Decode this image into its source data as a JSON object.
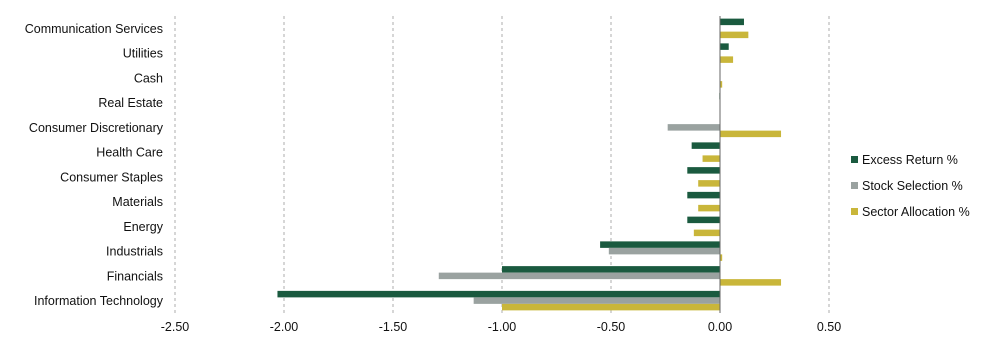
{
  "chart_data": {
    "type": "bar",
    "orientation": "horizontal",
    "categories": [
      "Communication Services",
      "Utilities",
      "Cash",
      "Real Estate",
      "Consumer Discretionary",
      "Health Care",
      "Consumer Staples",
      "Materials",
      "Energy",
      "Industrials",
      "Financials",
      "Information Technology"
    ],
    "series": [
      {
        "name": "Excess Return %",
        "color": "#1a5a3f",
        "values": [
          0.11,
          0.04,
          0.0,
          -0.003,
          0.0,
          -0.13,
          -0.15,
          -0.15,
          -0.15,
          -0.55,
          -1.0,
          -2.03
        ]
      },
      {
        "name": "Stock Selection %",
        "color": "#9aa2a0",
        "values": [
          0.0,
          0.0,
          0.0,
          0.0,
          -0.24,
          0.0,
          0.0,
          0.0,
          0.0,
          -0.51,
          -1.29,
          -1.13
        ]
      },
      {
        "name": "Sector Allocation %",
        "color": "#c9b63a",
        "values": [
          0.13,
          0.06,
          0.01,
          0.0,
          0.28,
          -0.08,
          -0.1,
          -0.1,
          -0.12,
          0.01,
          0.28,
          -1.0
        ]
      }
    ],
    "xlim": [
      -2.5,
      0.5
    ],
    "xticks": [
      -2.5,
      -2.0,
      -1.5,
      -1.0,
      -0.5,
      0.0,
      0.5
    ],
    "xtick_labels": [
      "-2.50",
      "-2.00",
      "-1.50",
      "-1.00",
      "-0.50",
      "0.00",
      "0.50"
    ],
    "grid": "vertical dashed",
    "legend_position": "right"
  }
}
